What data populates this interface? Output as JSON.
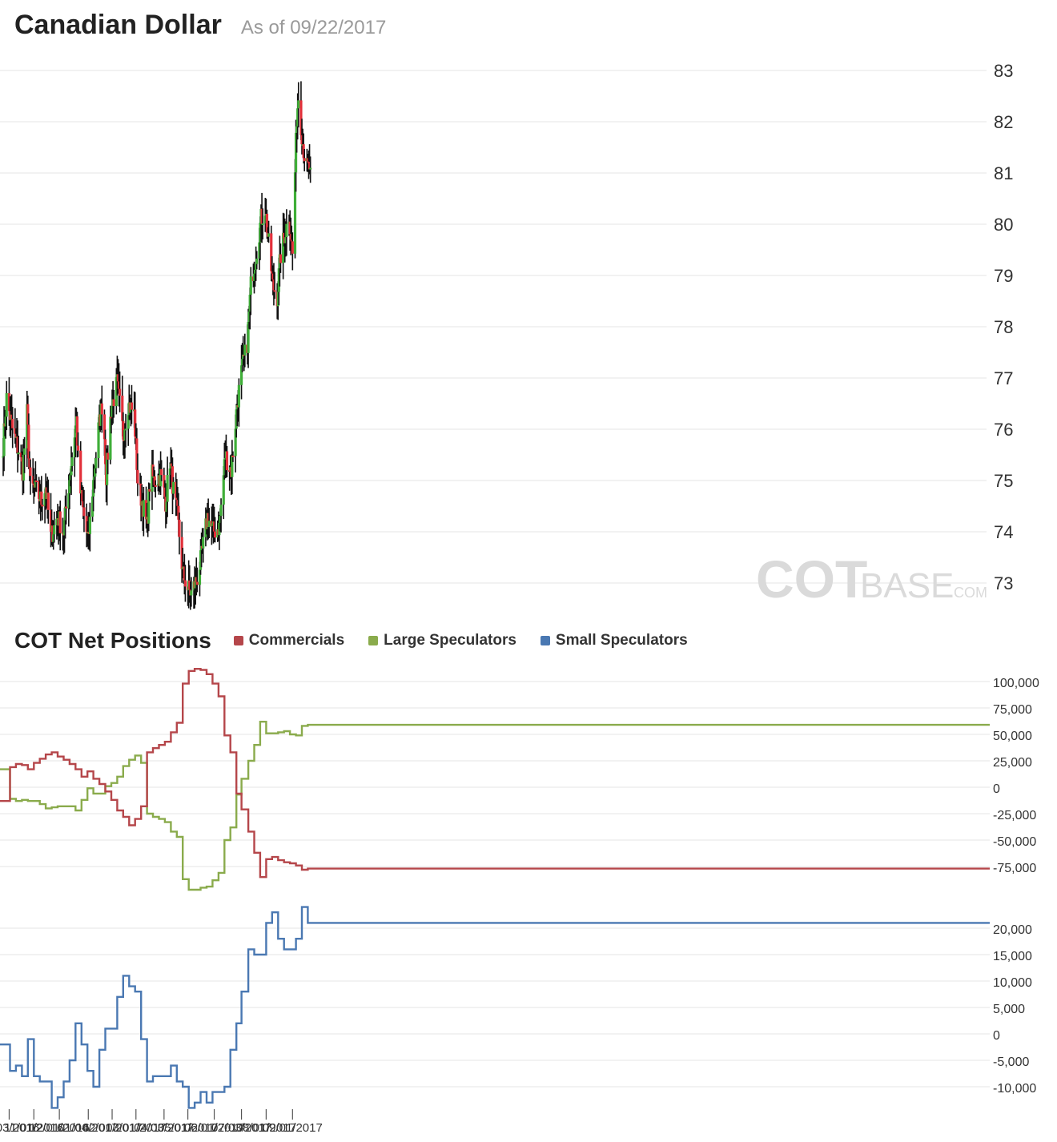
{
  "header": {
    "title": "Canadian Dollar",
    "as_of": "As of 09/22/2017"
  },
  "cot": {
    "title": "COT Net Positions",
    "legend": [
      {
        "label": "Commercials",
        "color": "#b5464a"
      },
      {
        "label": "Large Speculators",
        "color": "#8aab4c"
      },
      {
        "label": "Small Speculators",
        "color": "#4a78b2"
      }
    ]
  },
  "watermark": {
    "main": "COT",
    "sub": "BASE",
    "suffix": ".COM"
  },
  "colors": {
    "up": "#3fae38",
    "down": "#e2303a",
    "wick": "#111111",
    "grid": "#eeeeee",
    "zero": "#333333"
  },
  "chart_data": [
    {
      "type": "candlestick",
      "title": "Canadian Dollar",
      "ylim": [
        72.5,
        83.1
      ],
      "y_ticks": [
        "73",
        "74",
        "75",
        "76",
        "77",
        "78",
        "79",
        "80",
        "81",
        "82",
        "83"
      ],
      "axis_position": "right",
      "keypoints": [
        [
          "2016-09-26",
          75.7
        ],
        [
          "2016-09-30",
          76.6
        ],
        [
          "2016-10-07",
          76.0
        ],
        [
          "2016-10-14",
          75.6
        ],
        [
          "2016-10-19",
          75.2
        ],
        [
          "2016-10-24",
          76.3
        ],
        [
          "2016-10-28",
          74.9
        ],
        [
          "2016-11-04",
          74.8
        ],
        [
          "2016-11-10",
          74.6
        ],
        [
          "2016-11-15",
          74.9
        ],
        [
          "2016-11-21",
          73.9
        ],
        [
          "2016-11-29",
          74.3
        ],
        [
          "2016-12-06",
          74.0
        ],
        [
          "2016-12-14",
          75.2
        ],
        [
          "2016-12-21",
          76.2
        ],
        [
          "2016-12-24",
          75.0
        ],
        [
          "2016-12-30",
          74.3
        ],
        [
          "2017-01-04",
          73.8
        ],
        [
          "2017-01-09",
          74.8
        ],
        [
          "2017-01-16",
          76.0
        ],
        [
          "2017-01-21",
          76.6
        ],
        [
          "2017-01-25",
          75.1
        ],
        [
          "2017-01-31",
          76.4
        ],
        [
          "2017-02-07",
          76.9
        ],
        [
          "2017-02-14",
          75.9
        ],
        [
          "2017-02-20",
          76.5
        ],
        [
          "2017-02-27",
          76.3
        ],
        [
          "2017-03-03",
          75.0
        ],
        [
          "2017-03-08",
          74.6
        ],
        [
          "2017-03-14",
          74.1
        ],
        [
          "2017-03-18",
          75.2
        ],
        [
          "2017-03-22",
          75.0
        ],
        [
          "2017-03-30",
          75.1
        ],
        [
          "2017-04-05",
          74.6
        ],
        [
          "2017-04-10",
          75.4
        ],
        [
          "2017-04-14",
          74.8
        ],
        [
          "2017-04-19",
          74.3
        ],
        [
          "2017-04-25",
          73.2
        ],
        [
          "2017-05-01",
          72.9
        ],
        [
          "2017-05-05",
          72.8
        ],
        [
          "2017-05-12",
          73.1
        ],
        [
          "2017-05-17",
          73.5
        ],
        [
          "2017-05-24",
          74.3
        ],
        [
          "2017-05-31",
          74.0
        ],
        [
          "2017-06-07",
          74.1
        ],
        [
          "2017-06-14",
          75.5
        ],
        [
          "2017-06-21",
          75.2
        ],
        [
          "2017-06-28",
          76.5
        ],
        [
          "2017-07-03",
          77.1
        ],
        [
          "2017-07-10",
          77.7
        ],
        [
          "2017-07-14",
          78.8
        ],
        [
          "2017-07-20",
          79.4
        ],
        [
          "2017-07-26",
          80.1
        ],
        [
          "2017-07-31",
          80.3
        ],
        [
          "2017-08-04",
          79.6
        ],
        [
          "2017-08-09",
          78.8
        ],
        [
          "2017-08-14",
          78.6
        ],
        [
          "2017-08-18",
          79.4
        ],
        [
          "2017-08-23",
          79.8
        ],
        [
          "2017-08-28",
          80.2
        ],
        [
          "2017-09-01",
          79.4
        ],
        [
          "2017-09-06",
          82.1
        ],
        [
          "2017-09-08",
          82.5
        ],
        [
          "2017-09-13",
          81.6
        ],
        [
          "2017-09-17",
          81.1
        ],
        [
          "2017-09-22",
          81.1
        ]
      ]
    },
    {
      "type": "line",
      "title": "COT Net Positions",
      "ylim": [
        -90000,
        117000
      ],
      "y_ticks": [
        "100,000",
        "75,000",
        "50,000",
        "25,000",
        "0",
        "-25,000",
        "-50,000",
        "-75,000"
      ],
      "x": [
        "2016-09-27",
        "2016-10-04",
        "2016-10-11",
        "2016-10-18",
        "2016-10-25",
        "2016-11-01",
        "2016-11-08",
        "2016-11-15",
        "2016-11-22",
        "2016-11-29",
        "2016-12-06",
        "2016-12-13",
        "2016-12-20",
        "2016-12-27",
        "2017-01-03",
        "2017-01-10",
        "2017-01-17",
        "2017-01-24",
        "2017-01-31",
        "2017-02-07",
        "2017-02-14",
        "2017-02-21",
        "2017-02-28",
        "2017-03-07",
        "2017-03-14",
        "2017-03-21",
        "2017-03-28",
        "2017-04-04",
        "2017-04-11",
        "2017-04-18",
        "2017-04-25",
        "2017-05-02",
        "2017-05-09",
        "2017-05-16",
        "2017-05-23",
        "2017-05-30",
        "2017-06-06",
        "2017-06-13",
        "2017-06-20",
        "2017-06-27",
        "2017-07-03",
        "2017-07-11",
        "2017-07-18",
        "2017-07-25",
        "2017-08-01",
        "2017-08-08",
        "2017-08-15",
        "2017-08-22",
        "2017-08-29",
        "2017-09-05",
        "2017-09-12",
        "2017-09-19"
      ],
      "series": [
        {
          "name": "Commercials",
          "values": [
            -13000,
            19000,
            22000,
            21000,
            17000,
            23000,
            27000,
            31000,
            33000,
            29000,
            26000,
            22000,
            17000,
            10000,
            15000,
            8000,
            3000,
            -4000,
            -12000,
            -22000,
            -28000,
            -36000,
            -30000,
            -18000,
            33000,
            37000,
            40000,
            43000,
            52000,
            61000,
            98000,
            110000,
            112000,
            111000,
            107000,
            98000,
            86000,
            49000,
            33000,
            -6000,
            -21000,
            -42000,
            -62000,
            -85000,
            -68000,
            -66000,
            -69000,
            -71000,
            -72000,
            -74000,
            -78000,
            -77000
          ]
        },
        {
          "name": "Large Speculators",
          "values": [
            17000,
            -11000,
            -13000,
            -12000,
            -13000,
            -13000,
            -16000,
            -20000,
            -19000,
            -18000,
            -18000,
            -18000,
            -22000,
            -12000,
            -1000,
            -6000,
            -6000,
            1000,
            4000,
            10000,
            20000,
            26000,
            30000,
            23000,
            -25000,
            -28000,
            -30000,
            -33000,
            -42000,
            -47000,
            -87000,
            -97000,
            -97000,
            -95000,
            -94000,
            -88000,
            -81000,
            -50000,
            -38000,
            -7000,
            8000,
            25000,
            40000,
            62000,
            51000,
            51000,
            52000,
            53000,
            50000,
            49000,
            58000,
            59000
          ]
        },
        {
          "name": "Small Speculators",
          "values": [
            -2000,
            -7000,
            -6000,
            -8000,
            -1000,
            -8000,
            -9000,
            -9000,
            -14000,
            -12000,
            -9000,
            -5000,
            2000,
            -2000,
            -7000,
            -10000,
            -3000,
            1000,
            1000,
            7000,
            11000,
            9000,
            8000,
            -1000,
            -9000,
            -8000,
            -8000,
            -8000,
            -6000,
            -9000,
            -10000,
            -14000,
            -13000,
            -11000,
            -13000,
            -11000,
            -11000,
            -10000,
            -3000,
            2000,
            8000,
            16000,
            15000,
            15000,
            21000,
            23000,
            18000,
            16000,
            16000,
            18000,
            24000,
            21000
          ]
        }
      ]
    },
    {
      "type": "line",
      "title": "Small Speculators",
      "ylim": [
        -15000,
        26000
      ],
      "y_ticks": [
        "20,000",
        "15,000",
        "10,000",
        "5,000",
        "0",
        "-5,000",
        "-10,000"
      ],
      "x_tick_labels": [
        "10/03/2016",
        "11/01/2016",
        "12/01/2016",
        "01/04/2017",
        "02/01/2017",
        "03/01/2017",
        "04/03/2017",
        "05/01/2017",
        "06/01/2017",
        "07/03/2017",
        "08/01/2017",
        "09/01/2017"
      ]
    }
  ]
}
